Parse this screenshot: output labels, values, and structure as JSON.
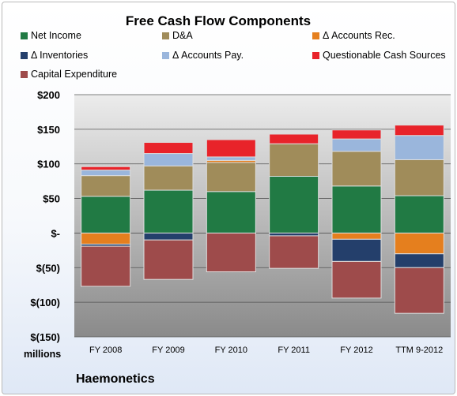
{
  "chart_data": {
    "type": "bar",
    "stacked": true,
    "title": "Free Cash Flow Components",
    "units_label": "millions",
    "brand": "Haemonetics",
    "categories": [
      "FY 2008",
      "FY 2009",
      "FY 2010",
      "FY 2011",
      "FY 2012",
      "TTM 9-2012"
    ],
    "y_ticks": [
      "$200",
      "$150",
      "$100",
      "$50",
      "$-",
      "$(50)",
      "$(100)",
      "$(150)"
    ],
    "ylim": [
      -150,
      200
    ],
    "legend_position": "top",
    "series": [
      {
        "name": "Net Income",
        "color": "#217a44",
        "values": [
          53,
          62,
          60,
          82,
          68,
          54
        ]
      },
      {
        "name": "D&A",
        "color": "#a08c5a",
        "values": [
          30,
          35,
          42,
          47,
          50,
          52
        ]
      },
      {
        "name": "Δ Accounts Rec.",
        "color": "#e57f1e",
        "values": [
          -16,
          0,
          3,
          0,
          -9,
          -30
        ]
      },
      {
        "name": "Δ Inventories",
        "color": "#243f6b",
        "values": [
          -3,
          -10,
          0,
          -4,
          -32,
          -20
        ]
      },
      {
        "name": "Δ Accounts Pay.",
        "color": "#9ab6dc",
        "values": [
          8,
          18,
          5,
          0,
          18,
          35
        ]
      },
      {
        "name": "Questionable Cash Sources",
        "color": "#e8232a",
        "values": [
          5,
          16,
          25,
          14,
          13,
          15
        ]
      },
      {
        "name": "Capital Expenditure",
        "color": "#9e4b4b",
        "values": [
          -58,
          -57,
          -56,
          -47,
          -53,
          -66
        ]
      }
    ]
  }
}
